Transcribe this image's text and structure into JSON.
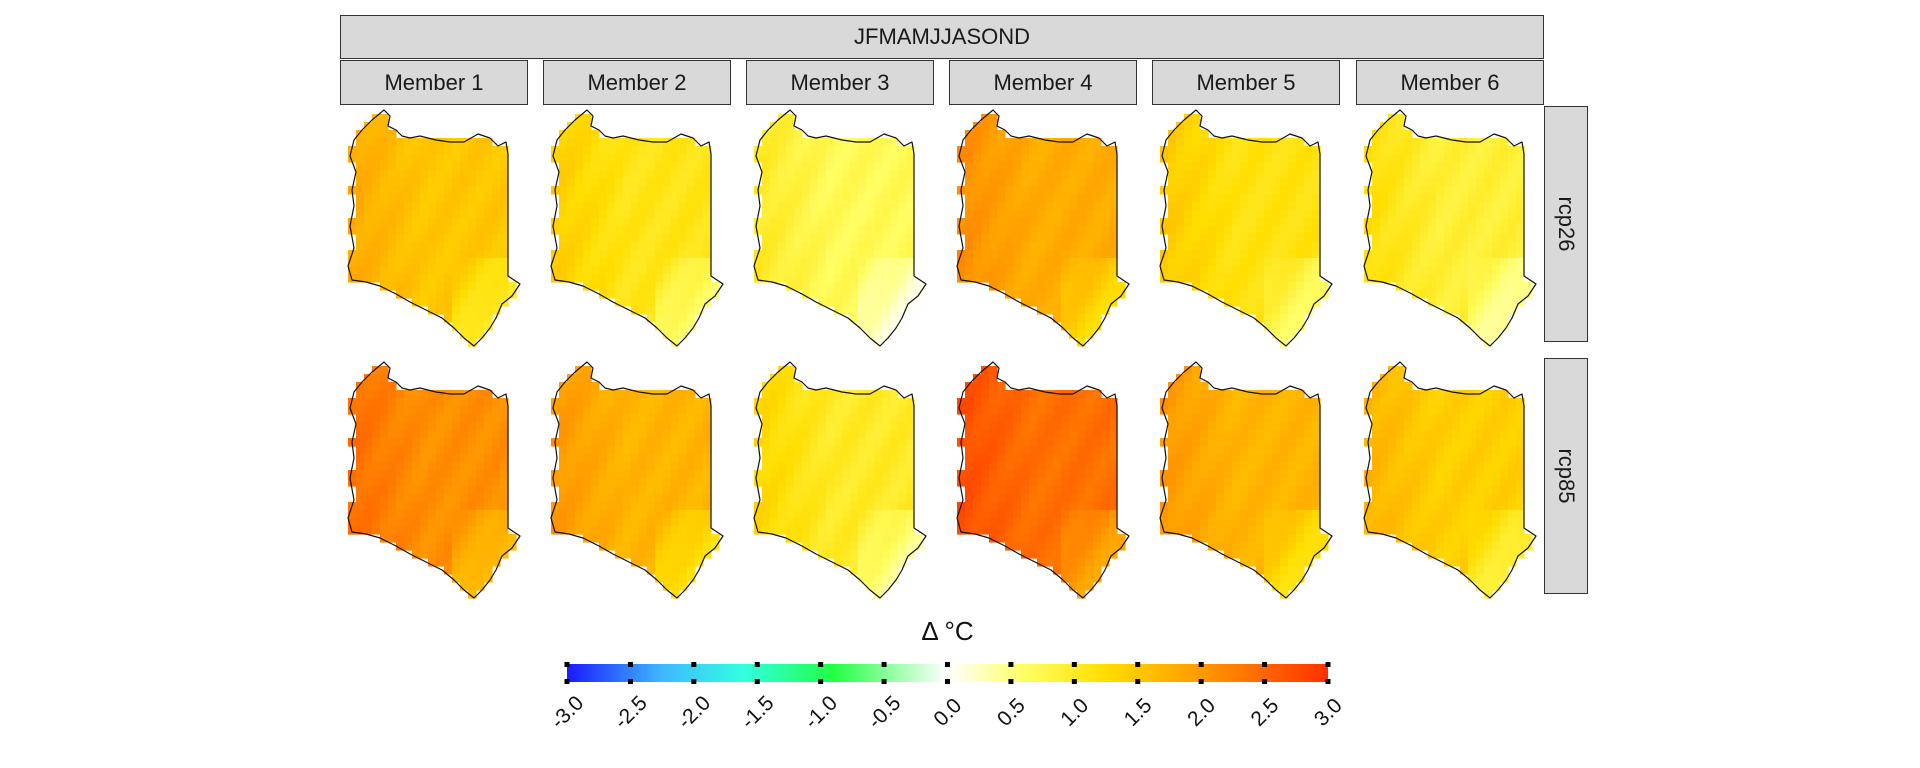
{
  "chart_data": {
    "type": "heatmap",
    "title": "JFMAMJJASOND",
    "columns": [
      "Member 1",
      "Member 2",
      "Member 3",
      "Member 4",
      "Member 5",
      "Member 6"
    ],
    "rows": [
      "rcp26",
      "rcp85"
    ],
    "legend": {
      "title": "Δ °C",
      "min": -3.0,
      "max": 3.0,
      "ticks": [
        "-3.0",
        "-2.5",
        "-2.0",
        "-1.5",
        "-1.0",
        "-0.5",
        "0.0",
        "0.5",
        "1.0",
        "1.5",
        "2.0",
        "2.5",
        "3.0"
      ],
      "placement": "bottom",
      "colors": [
        "#1a1aff",
        "#3fb8ff",
        "#33ffe0",
        "#22ff44",
        "#ffffff",
        "#ffff66",
        "#ffdd00",
        "#ff9a00",
        "#ff3000"
      ]
    },
    "approx_mean_change": [
      [
        1.5,
        1.1,
        0.7,
        1.8,
        1.15,
        0.9
      ],
      [
        2.1,
        1.7,
        1.0,
        2.4,
        1.7,
        1.4
      ]
    ]
  }
}
